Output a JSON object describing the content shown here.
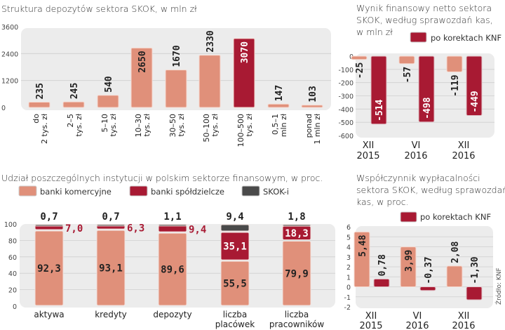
{
  "colors": {
    "salmon": "#e0907a",
    "crimson": "#a81a33",
    "dark": "#4a4a4a",
    "panel": "#ececec"
  },
  "chart_data": [
    {
      "id": "deposits",
      "type": "bar",
      "title": "Struktura depozytów sektora SKOK, w mln zł",
      "categories": [
        [
          "do",
          "2 tys. zł"
        ],
        [
          "2–5",
          "tys. zł"
        ],
        [
          "5–10",
          "tys. zł"
        ],
        [
          "10–30",
          "tys. zł"
        ],
        [
          "30–50",
          "tys. zł"
        ],
        [
          "50–100",
          "tys. zł"
        ],
        [
          "100–500",
          "tys. zł"
        ],
        [
          "0,5–1",
          "mln zł"
        ],
        [
          "ponad",
          "1 mln zł"
        ]
      ],
      "values": [
        235,
        245,
        540,
        2650,
        1670,
        2330,
        3070,
        147,
        103
      ],
      "value_labels": [
        "235",
        "245",
        "540",
        "2650",
        "1670",
        "2330",
        "3070",
        "147",
        "103"
      ],
      "highlight_index": 6,
      "yticks": [
        0,
        1200,
        2400,
        3600
      ],
      "ytick_labels": [
        "0",
        "1200",
        "2400",
        "3600"
      ],
      "ylim": [
        0,
        3600
      ],
      "grid": true,
      "xlabel": "",
      "ylabel": ""
    },
    {
      "id": "net-result",
      "type": "bar",
      "title": [
        "Wynik finansowy netto sektora",
        "SKOK, według sprawozdań kas,",
        "w mln zł"
      ],
      "legend": [
        {
          "name": "po korektach KNF",
          "color_key": "crimson"
        }
      ],
      "legend_position": "top-right",
      "categories": [
        [
          "XII",
          "2015"
        ],
        [
          "VI",
          "2016"
        ],
        [
          "XII",
          "2016"
        ]
      ],
      "series": [
        {
          "name": "według sprawozdań kas",
          "values": [
            -25,
            -57,
            -119
          ],
          "labels": [
            "-25",
            "-57",
            "-119"
          ]
        },
        {
          "name": "po korektach KNF",
          "values": [
            -514,
            -498,
            -449
          ],
          "labels": [
            "-514",
            "-498",
            "-449"
          ]
        }
      ],
      "yticks": [
        0,
        -100,
        -200,
        -300,
        -400,
        -500,
        -600
      ],
      "ytick_labels": [
        "0",
        "-100",
        "-200",
        "-300",
        "-400",
        "-500",
        "-600"
      ],
      "ylim": [
        -600,
        0
      ],
      "grid": true
    },
    {
      "id": "share",
      "type": "bar",
      "stacked": true,
      "title": "Udział poszczególnych instytucji w polskim sektorze finansowym, w proc.",
      "legend": [
        {
          "name": "banki komercyjne",
          "color_key": "salmon"
        },
        {
          "name": "banki spółdzielcze",
          "color_key": "crimson"
        },
        {
          "name": "SKOK-i",
          "color_key": "dark"
        }
      ],
      "legend_position": "top",
      "categories": [
        [
          "aktywa"
        ],
        [
          "kredyty"
        ],
        [
          "depozyty"
        ],
        [
          "liczba",
          "placówek"
        ],
        [
          "liczba",
          "pracowników"
        ]
      ],
      "series": [
        {
          "name": "banki komercyjne",
          "values": [
            92.3,
            93.1,
            89.6,
            55.5,
            79.9
          ],
          "labels": [
            "92,3",
            "93,1",
            "89,6",
            "55,5",
            "79,9"
          ]
        },
        {
          "name": "banki spółdzielcze",
          "values": [
            7.0,
            6.3,
            9.4,
            35.1,
            18.3
          ],
          "labels": [
            "7,0",
            "6,3",
            "9,4",
            "35,1",
            "18,3"
          ]
        },
        {
          "name": "SKOK-i",
          "values": [
            0.7,
            0.7,
            1.1,
            9.4,
            1.8
          ],
          "labels": [
            "0,7",
            "0,7",
            "1,1",
            "9,4",
            "1,8"
          ]
        }
      ],
      "yticks": [
        0,
        20,
        40,
        60,
        80,
        100
      ],
      "ytick_labels": [
        "0",
        "20",
        "40",
        "60",
        "80",
        "100"
      ],
      "ylim": [
        0,
        100
      ],
      "grid": true
    },
    {
      "id": "solvency",
      "type": "bar",
      "title": [
        "Współczynnik wypłacalności",
        "sektora SKOK, według sprawozdań",
        "kas, w proc."
      ],
      "legend": [
        {
          "name": "po korektach KNF",
          "color_key": "crimson"
        }
      ],
      "legend_position": "top-right",
      "categories": [
        [
          "XII",
          "2015"
        ],
        [
          "VI",
          "2016"
        ],
        [
          "XII",
          "2016"
        ]
      ],
      "series": [
        {
          "name": "według sprawozdań kas",
          "values": [
            5.48,
            3.99,
            2.08
          ],
          "labels": [
            "5,48",
            "3,99",
            "2,08"
          ]
        },
        {
          "name": "po korektach KNF",
          "values": [
            0.78,
            -0.37,
            -1.3
          ],
          "labels": [
            "0,78",
            "-0,37",
            "-1,30"
          ]
        }
      ],
      "yticks": [
        -2,
        -1,
        0,
        1,
        2,
        3,
        4,
        5,
        6
      ],
      "ytick_labels": [
        "-2",
        "-1",
        "0",
        "1",
        "2",
        "3",
        "4",
        "5",
        "6"
      ],
      "ylim": [
        -2,
        6
      ],
      "grid": true,
      "source": "Źródło: KNF"
    }
  ]
}
